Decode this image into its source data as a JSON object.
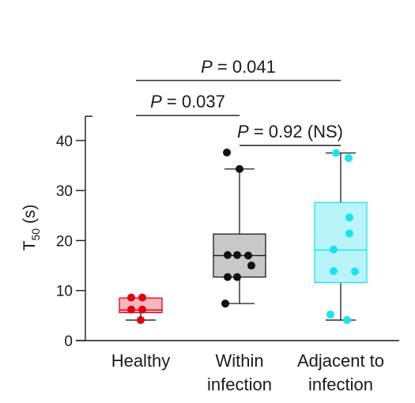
{
  "chart_data": {
    "type": "box",
    "ylabel": "T",
    "ylabel_sub": "50",
    "ylabel_unit": "(s)",
    "ylim": [
      0,
      45
    ],
    "yticks": [
      0,
      10,
      20,
      30,
      40
    ],
    "categories": [
      "Healthy",
      "Within infection",
      "Adjacent to infection"
    ],
    "category_lines": [
      [
        "Healthy"
      ],
      [
        "Within",
        "infection"
      ],
      [
        "Adjacent to",
        "infection"
      ]
    ],
    "groups": [
      {
        "name": "Healthy",
        "color": "#e3000f",
        "fill": "#f7b6bc",
        "whisker_low": 4.1,
        "q1": 5.6,
        "median": 6.1,
        "q3": 8.5,
        "whisker_high": 8.5,
        "points": [
          8.6,
          8.6,
          6.2,
          6.2,
          4.1
        ]
      },
      {
        "name": "Within infection",
        "color": "#111111",
        "fill": "#c8c8c8",
        "whisker_low": 7.4,
        "q1": 12.7,
        "median": 17.0,
        "q3": 21.3,
        "whisker_high": 34.3,
        "points": [
          37.6,
          34.3,
          17.1,
          17.1,
          17.0,
          15.0,
          12.7,
          12.7,
          7.4
        ]
      },
      {
        "name": "Adjacent to infection",
        "color": "#19e3ee",
        "fill": "#b8f4f8",
        "whisker_low": 4.1,
        "q1": 11.6,
        "median": 18.1,
        "q3": 27.6,
        "whisker_high": 37.5,
        "points": [
          37.5,
          36.5,
          24.6,
          21.4,
          18.2,
          13.9,
          13.8,
          5.2,
          4.1
        ]
      }
    ],
    "comparisons": [
      {
        "label": "P = 0.041",
        "from": 0,
        "to": 2,
        "y": 52.0
      },
      {
        "label": "P = 0.037",
        "from": 0,
        "to": 1,
        "y": 45.0
      },
      {
        "label": "P = 0.92 (NS)",
        "from": 1,
        "to": 2,
        "y": 39.0
      }
    ]
  }
}
